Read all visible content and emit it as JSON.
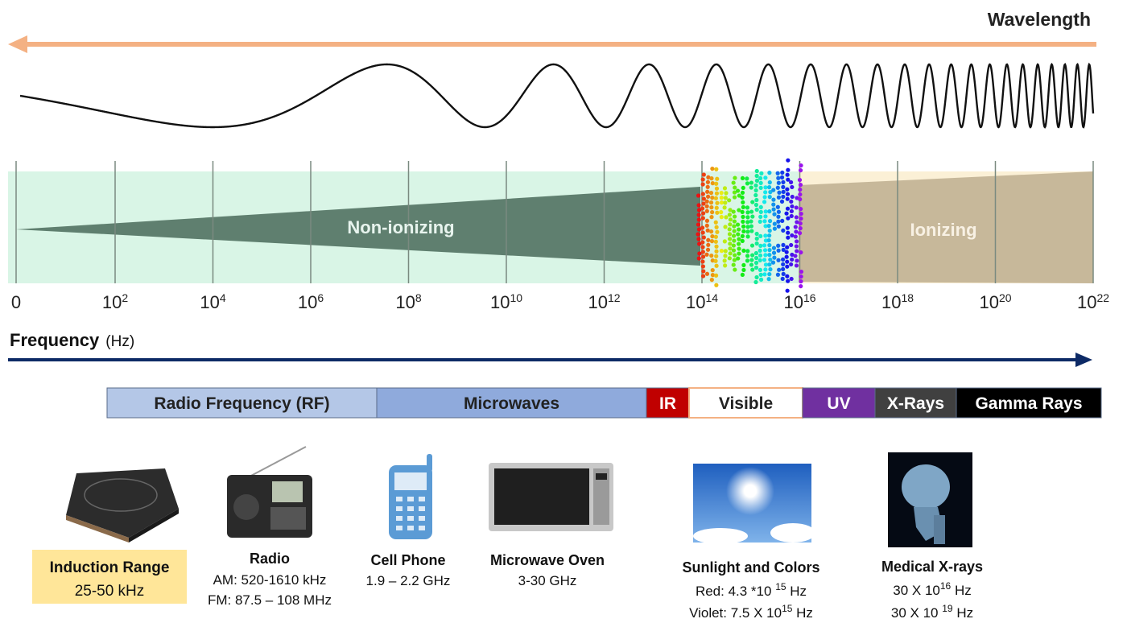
{
  "wavelength_label": "Wavelength",
  "spectrum": {
    "non_ionizing": "Non-ionizing",
    "ionizing": "Ionizing"
  },
  "frequency_ticks": [
    {
      "base": "0"
    },
    {
      "base": "10",
      "exp": "2"
    },
    {
      "base": "10",
      "exp": "4"
    },
    {
      "base": "10",
      "exp": "6"
    },
    {
      "base": "10",
      "exp": "8"
    },
    {
      "base": "10",
      "exp": "10"
    },
    {
      "base": "10",
      "exp": "12"
    },
    {
      "base": "10",
      "exp": "14"
    },
    {
      "base": "10",
      "exp": "16"
    },
    {
      "base": "10",
      "exp": "18"
    },
    {
      "base": "10",
      "exp": "20"
    },
    {
      "base": "10",
      "exp": "22"
    }
  ],
  "frequency_axis": {
    "label": "Frequency",
    "unit": "(Hz)"
  },
  "bands": [
    "Radio Frequency (RF)",
    "Microwaves",
    "IR",
    "Visible",
    "UV",
    "X-Rays",
    "Gamma Rays"
  ],
  "devices": [
    {
      "name": "Induction Range",
      "lines": [
        [
          {
            "text": "25-50 kHz"
          }
        ]
      ]
    },
    {
      "name": "Radio",
      "lines": [
        [
          {
            "text": "AM: 520-1610 kHz"
          }
        ],
        [
          {
            "text": "FM: 87.5 – 108 MHz"
          }
        ]
      ]
    },
    {
      "name": "Cell Phone",
      "lines": [
        [
          {
            "text": "1.9 – 2.2 GHz"
          }
        ]
      ]
    },
    {
      "name": "Microwave Oven",
      "lines": [
        [
          {
            "text": "3-30 GHz"
          }
        ]
      ]
    },
    {
      "name": "Sunlight and Colors",
      "lines": [
        [
          {
            "text": "Red: 4.3 *10 "
          },
          {
            "sup": "15"
          },
          {
            "text": " Hz"
          }
        ],
        [
          {
            "text": "Violet: 7.5 X 10"
          },
          {
            "sup": "15"
          },
          {
            "text": " Hz"
          }
        ]
      ]
    },
    {
      "name": "Medical X-rays",
      "lines": [
        [
          {
            "text": "30 X 10"
          },
          {
            "sup": "16"
          },
          {
            "text": " Hz"
          }
        ],
        [
          {
            "text": "30 X 10 "
          },
          {
            "sup": "19"
          },
          {
            "text": " Hz"
          }
        ]
      ]
    }
  ]
}
